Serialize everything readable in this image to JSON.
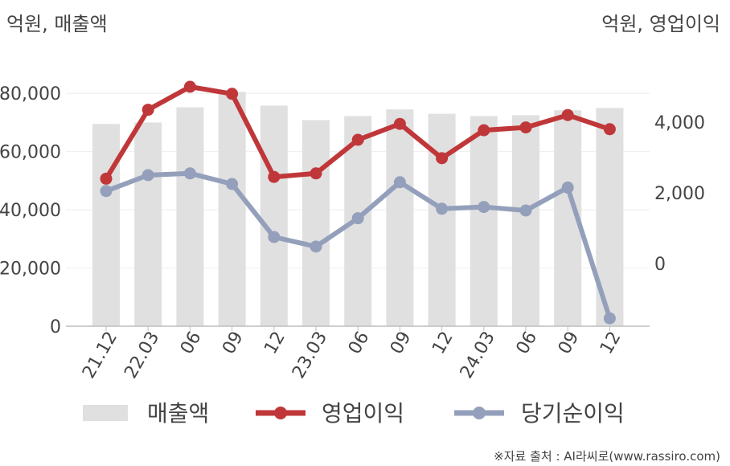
{
  "chart_data": {
    "type": "bar+line",
    "categories": [
      "21.12",
      "22.03",
      "06",
      "09",
      "12",
      "23.03",
      "06",
      "09",
      "12",
      "24.03",
      "06",
      "09",
      "12"
    ],
    "left_axis": {
      "unit_label": "억원, 매출액",
      "ylim": [
        0,
        90000
      ],
      "ticks": [
        0,
        20000,
        40000,
        60000,
        80000
      ],
      "tick_labels": [
        "0",
        "20,000",
        "40,000",
        "60,000",
        "80,000"
      ]
    },
    "right_axis": {
      "unit_label": "억원, 영업이익",
      "ylim": [
        -1750,
        5500
      ],
      "ticks": [
        0,
        2000,
        4000
      ],
      "tick_labels": [
        "0",
        "2,000",
        "4,000"
      ]
    },
    "series": [
      {
        "name": "매출액",
        "kind": "bar",
        "axis": "left",
        "color": "#e0e0e0",
        "values": [
          69500,
          70000,
          75200,
          80500,
          75800,
          70800,
          72200,
          74500,
          73000,
          72200,
          72500,
          74200,
          75000
        ]
      },
      {
        "name": "영업이익",
        "kind": "line",
        "axis": "right",
        "color": "#c0373a",
        "values": [
          2400,
          4350,
          5000,
          4800,
          2450,
          2550,
          3500,
          3950,
          2980,
          3770,
          3850,
          4200,
          3800
        ]
      },
      {
        "name": "당기순이익",
        "kind": "line",
        "axis": "right",
        "color": "#94a0bb",
        "values": [
          2050,
          2500,
          2550,
          2250,
          750,
          480,
          1280,
          2300,
          1550,
          1600,
          1500,
          2150,
          -1550
        ]
      }
    ],
    "legend_position": "bottom",
    "grid": "horizontal"
  },
  "source_text": "※자료 출처 : AI라씨로(www.rassiro.com)"
}
